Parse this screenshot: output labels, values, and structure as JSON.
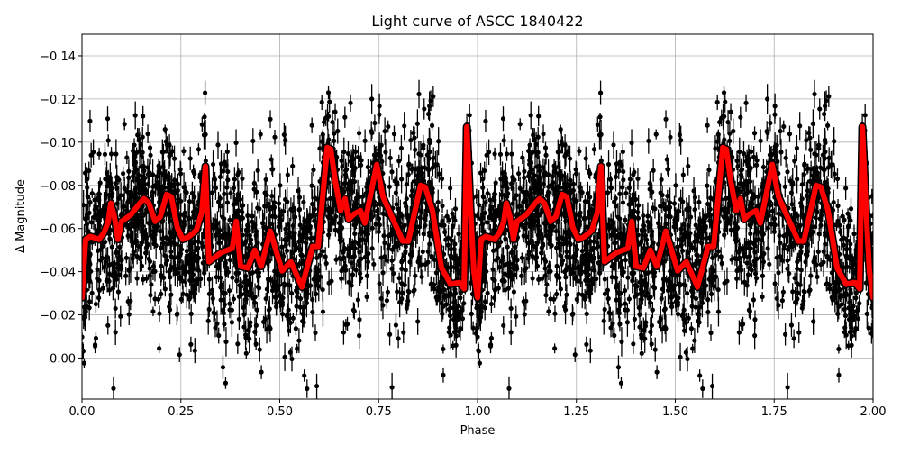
{
  "chart_data": {
    "type": "scatter",
    "title": "Light curve of ASCC 1840422",
    "xlabel": "Phase",
    "ylabel": "Δ Magnitude",
    "xlim": [
      0,
      2
    ],
    "ylim": [
      -0.15,
      0.019
    ],
    "y_inverted": true,
    "grid": true,
    "x_ticks": [
      "0.00",
      "0.25",
      "0.50",
      "0.75",
      "1.00",
      "1.25",
      "1.50",
      "1.75",
      "2.00"
    ],
    "x_tick_values": [
      0,
      0.25,
      0.5,
      0.75,
      1.0,
      1.25,
      1.5,
      1.75,
      2.0
    ],
    "y_ticks": [
      "−0.14",
      "−0.12",
      "−0.10",
      "−0.08",
      "−0.06",
      "−0.04",
      "−0.02",
      "0.00"
    ],
    "y_tick_values": [
      -0.14,
      -0.12,
      -0.1,
      -0.08,
      -0.06,
      -0.04,
      -0.02,
      0.0
    ],
    "observations": {
      "style": "black points with vertical error bars",
      "color": "#000000",
      "period_repeat": true
    },
    "model_curve": {
      "style": "line",
      "color": "#ff0000",
      "outline_color": "#000000",
      "phase": [
        0,
        0.009,
        0.021,
        0.043,
        0.055,
        0.066,
        0.073,
        0.082,
        0.091,
        0.1,
        0.123,
        0.146,
        0.157,
        0.169,
        0.185,
        0.198,
        0.214,
        0.226,
        0.241,
        0.255,
        0.271,
        0.289,
        0.303,
        0.312,
        0.321,
        0.351,
        0.38,
        0.39,
        0.401,
        0.419,
        0.437,
        0.453,
        0.476,
        0.506,
        0.528,
        0.556,
        0.583,
        0.597,
        0.62,
        0.629,
        0.64,
        0.654,
        0.665,
        0.674,
        0.688,
        0.704,
        0.715,
        0.745,
        0.761,
        0.811,
        0.825,
        0.856,
        0.868,
        0.886,
        0.909,
        0.932,
        0.954,
        0.966,
        0.973,
        0.982,
        0.991,
        1.0
      ],
      "magnitude": [
        -0.028,
        -0.055,
        -0.0563,
        -0.055,
        -0.0579,
        -0.0629,
        -0.0717,
        -0.0654,
        -0.055,
        -0.0633,
        -0.0663,
        -0.0717,
        -0.0738,
        -0.0717,
        -0.0633,
        -0.0654,
        -0.0758,
        -0.0746,
        -0.0604,
        -0.055,
        -0.0563,
        -0.0592,
        -0.0675,
        -0.0888,
        -0.0446,
        -0.0488,
        -0.0508,
        -0.0633,
        -0.0425,
        -0.0417,
        -0.05,
        -0.0425,
        -0.0588,
        -0.0404,
        -0.0446,
        -0.0329,
        -0.0517,
        -0.0517,
        -0.0975,
        -0.0967,
        -0.0821,
        -0.0683,
        -0.0738,
        -0.0642,
        -0.0667,
        -0.0683,
        -0.0625,
        -0.0896,
        -0.0746,
        -0.0542,
        -0.0542,
        -0.08,
        -0.0792,
        -0.0683,
        -0.0417,
        -0.0342,
        -0.035,
        -0.0321,
        -0.1071,
        -0.0696,
        -0.04,
        -0.028
      ],
      "repeats_every_phase": 1
    }
  }
}
